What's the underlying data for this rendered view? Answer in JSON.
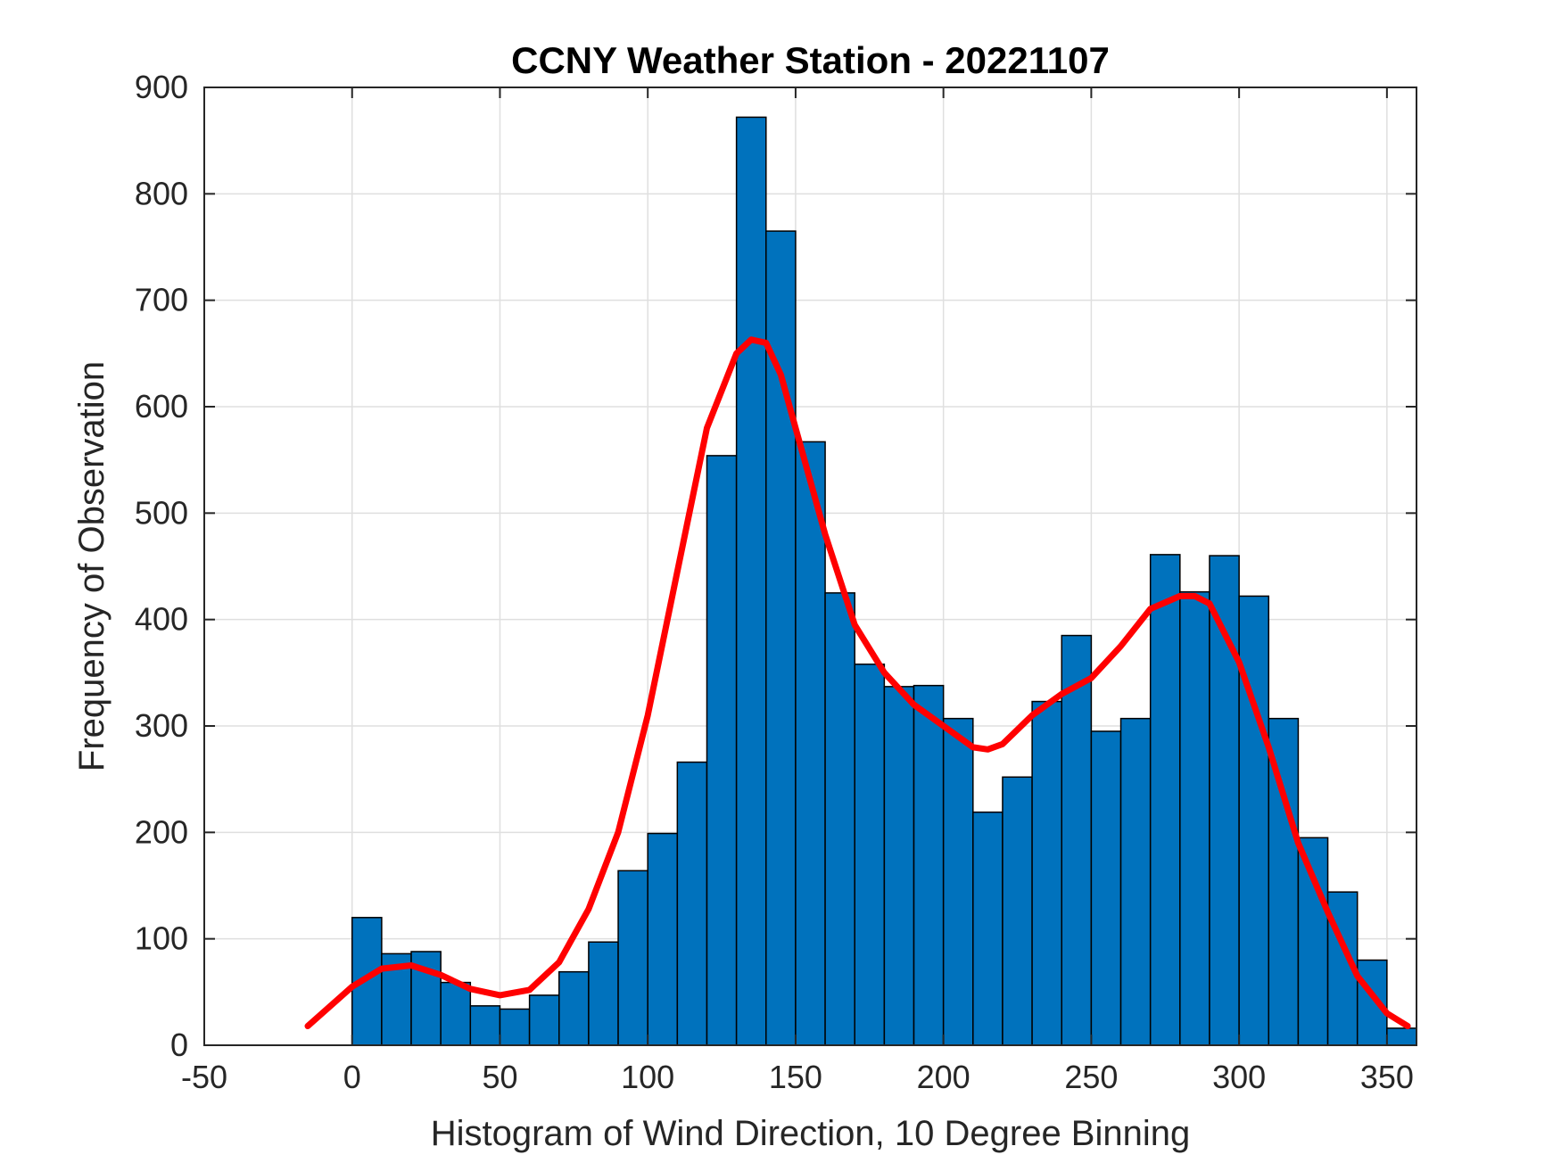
{
  "chart_data": {
    "type": "bar",
    "title": "CCNY Weather Station - 20221107",
    "xlabel": "Histogram of Wind Direction, 10 Degree Binning",
    "ylabel": "Frequency of Observation",
    "xlim": [
      -50,
      360
    ],
    "ylim": [
      0,
      900
    ],
    "x_ticks": [
      -50,
      0,
      50,
      100,
      150,
      200,
      250,
      300,
      350
    ],
    "y_ticks": [
      0,
      100,
      200,
      300,
      400,
      500,
      600,
      700,
      800,
      900
    ],
    "grid": true,
    "bin_width": 10,
    "bin_edges": [
      0,
      10,
      20,
      30,
      40,
      50,
      60,
      70,
      80,
      90,
      100,
      110,
      120,
      130,
      140,
      150,
      160,
      170,
      180,
      190,
      200,
      210,
      220,
      230,
      240,
      250,
      260,
      270,
      280,
      290,
      300,
      310,
      320,
      330,
      340,
      350,
      360
    ],
    "values": [
      120,
      86,
      88,
      59,
      37,
      34,
      47,
      69,
      97,
      164,
      199,
      266,
      554,
      872,
      765,
      567,
      425,
      358,
      337,
      338,
      307,
      219,
      252,
      323,
      385,
      295,
      307,
      461,
      426,
      460,
      422,
      307,
      195,
      144,
      80,
      16
    ],
    "fit_curve": {
      "x": [
        -15,
        0,
        10,
        20,
        30,
        40,
        50,
        60,
        70,
        80,
        90,
        100,
        110,
        120,
        130,
        135,
        140,
        145,
        150,
        160,
        170,
        180,
        190,
        200,
        210,
        215,
        220,
        230,
        240,
        250,
        260,
        270,
        280,
        285,
        290,
        300,
        310,
        320,
        330,
        340,
        350,
        357
      ],
      "y": [
        18,
        55,
        72,
        75,
        66,
        53,
        47,
        52,
        78,
        128,
        200,
        310,
        445,
        580,
        650,
        663,
        660,
        630,
        580,
        480,
        395,
        350,
        320,
        300,
        280,
        278,
        283,
        310,
        330,
        345,
        375,
        410,
        422,
        422,
        415,
        360,
        280,
        190,
        125,
        65,
        30,
        18
      ],
      "color": "#FF0000"
    },
    "bar_color": "#0072BD",
    "bar_edge_color": "#000000"
  }
}
